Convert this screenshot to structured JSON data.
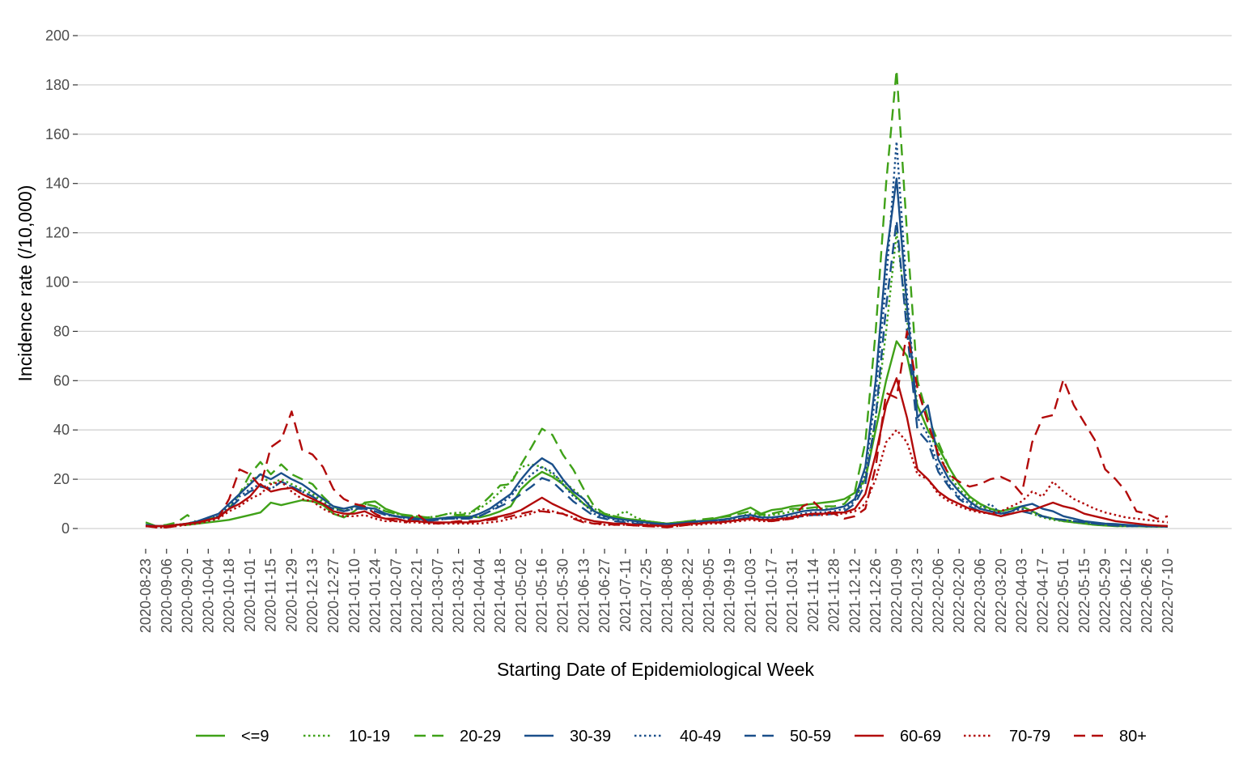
{
  "chart_data": {
    "type": "line",
    "xlabel": "Starting Date of Epidemiological Week",
    "ylabel": "Incidence rate (/10,000)",
    "ylim": [
      0,
      200
    ],
    "yticks": [
      0,
      20,
      40,
      60,
      80,
      100,
      120,
      140,
      160,
      180,
      200
    ],
    "grid": "horizontal",
    "legend_position": "bottom",
    "x_tick_labels": [
      "2020-08-23",
      "2020-09-06",
      "2020-09-20",
      "2020-10-04",
      "2020-10-18",
      "2020-11-01",
      "2020-11-15",
      "2020-11-29",
      "2020-12-13",
      "2020-12-27",
      "2021-01-10",
      "2021-01-24",
      "2021-02-07",
      "2021-02-21",
      "2021-03-07",
      "2021-03-21",
      "2021-04-04",
      "2021-04-18",
      "2021-05-02",
      "2021-05-16",
      "2021-05-30",
      "2021-06-13",
      "2021-06-27",
      "2021-07-11",
      "2021-07-25",
      "2021-08-08",
      "2021-08-22",
      "2021-09-05",
      "2021-09-19",
      "2021-10-03",
      "2021-10-17",
      "2021-10-31",
      "2021-11-14",
      "2021-11-28",
      "2021-12-12",
      "2021-12-26",
      "2022-01-09",
      "2022-01-23",
      "2022-02-06",
      "2022-02-20",
      "2022-03-06",
      "2022-03-20",
      "2022-04-03",
      "2022-04-17",
      "2022-05-01",
      "2022-05-15",
      "2022-05-29",
      "2022-06-12",
      "2022-06-26",
      "2022-07-10"
    ],
    "weeks": [
      "2020-08-23",
      "2020-08-30",
      "2020-09-06",
      "2020-09-13",
      "2020-09-20",
      "2020-09-27",
      "2020-10-04",
      "2020-10-11",
      "2020-10-18",
      "2020-10-25",
      "2020-11-01",
      "2020-11-08",
      "2020-11-15",
      "2020-11-22",
      "2020-11-29",
      "2020-12-06",
      "2020-12-13",
      "2020-12-20",
      "2020-12-27",
      "2021-01-03",
      "2021-01-10",
      "2021-01-17",
      "2021-01-24",
      "2021-01-31",
      "2021-02-07",
      "2021-02-14",
      "2021-02-21",
      "2021-02-28",
      "2021-03-07",
      "2021-03-14",
      "2021-03-21",
      "2021-03-28",
      "2021-04-04",
      "2021-04-11",
      "2021-04-18",
      "2021-04-25",
      "2021-05-02",
      "2021-05-09",
      "2021-05-16",
      "2021-05-23",
      "2021-05-30",
      "2021-06-06",
      "2021-06-13",
      "2021-06-20",
      "2021-06-27",
      "2021-07-04",
      "2021-07-11",
      "2021-07-18",
      "2021-07-25",
      "2021-08-01",
      "2021-08-08",
      "2021-08-15",
      "2021-08-22",
      "2021-08-29",
      "2021-09-05",
      "2021-09-12",
      "2021-09-19",
      "2021-09-26",
      "2021-10-03",
      "2021-10-10",
      "2021-10-17",
      "2021-10-24",
      "2021-10-31",
      "2021-11-07",
      "2021-11-14",
      "2021-11-21",
      "2021-11-28",
      "2021-12-05",
      "2021-12-12",
      "2021-12-19",
      "2021-12-26",
      "2022-01-02",
      "2022-01-09",
      "2022-01-16",
      "2022-01-23",
      "2022-01-30",
      "2022-02-06",
      "2022-02-13",
      "2022-02-20",
      "2022-02-27",
      "2022-03-06",
      "2022-03-13",
      "2022-03-20",
      "2022-03-27",
      "2022-04-03",
      "2022-04-10",
      "2022-04-17",
      "2022-04-24",
      "2022-05-01",
      "2022-05-08",
      "2022-05-15",
      "2022-05-22",
      "2022-05-29",
      "2022-06-05",
      "2022-06-12",
      "2022-06-19",
      "2022-06-26",
      "2022-07-03",
      "2022-07-10"
    ],
    "series": [
      {
        "name": "<=9",
        "color": "#3fa118",
        "dash": "solid",
        "values": [
          2.5,
          1.0,
          1.0,
          1.5,
          1.5,
          2.0,
          2.5,
          3.0,
          3.5,
          4.5,
          5.5,
          6.5,
          10.5,
          9.5,
          10.5,
          11.5,
          11.0,
          9.5,
          6.0,
          4.5,
          7.0,
          10.5,
          11.0,
          8.0,
          6.5,
          5.0,
          4.5,
          4.0,
          4.0,
          4.5,
          5.0,
          5.0,
          4.5,
          5.5,
          7.0,
          9.0,
          16.0,
          20.0,
          23.0,
          21.0,
          18.0,
          14.0,
          10.0,
          7.0,
          5.5,
          4.5,
          4.0,
          3.5,
          3.0,
          2.5,
          2.0,
          2.5,
          3.0,
          3.0,
          3.5,
          4.5,
          5.5,
          7.0,
          8.5,
          6.0,
          7.5,
          8.0,
          9.0,
          9.5,
          10.0,
          10.5,
          11.0,
          12.0,
          14.5,
          20.0,
          40.0,
          60.0,
          76.0,
          70.0,
          50.0,
          40.0,
          33.0,
          25.0,
          18.0,
          13.0,
          10.0,
          8.0,
          7.0,
          8.0,
          9.0,
          7.0,
          5.0,
          4.0,
          3.0,
          2.5,
          2.0,
          1.5,
          1.2,
          1.0,
          1.0,
          1.0,
          0.8,
          0.8,
          0.8
        ]
      },
      {
        "name": "10-19",
        "color": "#3fa118",
        "dash": "dot",
        "values": [
          1.0,
          1.0,
          1.0,
          1.5,
          2.0,
          2.5,
          3.5,
          5.0,
          9.0,
          14.0,
          19.0,
          22.0,
          18.0,
          20.0,
          18.0,
          16.0,
          14.0,
          11.0,
          8.0,
          7.0,
          9.0,
          10.0,
          9.0,
          7.0,
          6.0,
          5.0,
          5.0,
          4.5,
          5.0,
          6.0,
          6.5,
          6.0,
          8.0,
          11.0,
          15.0,
          19.0,
          25.0,
          26.0,
          25.0,
          22.0,
          19.0,
          16.0,
          12.0,
          8.0,
          6.0,
          5.0,
          7.0,
          4.5,
          3.0,
          2.5,
          2.0,
          2.0,
          2.0,
          2.5,
          3.0,
          3.5,
          4.0,
          5.0,
          6.0,
          5.0,
          5.5,
          6.0,
          7.0,
          8.0,
          8.5,
          8.0,
          8.0,
          9.0,
          12.0,
          20.0,
          45.0,
          80.0,
          120.0,
          85.0,
          50.0,
          40.0,
          31.0,
          22.0,
          16.0,
          12.0,
          9.0,
          7.5,
          6.0,
          7.0,
          8.0,
          6.0,
          4.5,
          3.5,
          3.0,
          2.5,
          2.0,
          1.5,
          1.3,
          1.0,
          1.0,
          1.0,
          0.8,
          0.8,
          0.8
        ]
      },
      {
        "name": "20-29",
        "color": "#3fa118",
        "dash": "dash",
        "values": [
          1.5,
          1.0,
          1.5,
          2.5,
          5.5,
          2.0,
          4.0,
          4.5,
          8.0,
          14.0,
          22.0,
          27.0,
          22.0,
          26.0,
          22.0,
          20.0,
          18.0,
          13.0,
          9.0,
          7.0,
          9.0,
          10.0,
          9.0,
          7.0,
          6.0,
          5.5,
          5.0,
          4.5,
          5.0,
          6.0,
          5.5,
          6.0,
          9.0,
          13.0,
          17.5,
          18.0,
          26.0,
          33.0,
          40.5,
          38.0,
          30.0,
          24.0,
          16.0,
          9.0,
          6.0,
          5.0,
          4.0,
          3.5,
          3.0,
          2.5,
          2.0,
          2.5,
          3.0,
          3.5,
          4.0,
          4.5,
          5.0,
          6.0,
          7.0,
          5.5,
          6.0,
          7.0,
          8.0,
          8.0,
          8.5,
          9.0,
          9.0,
          10.0,
          15.0,
          35.0,
          80.0,
          140.0,
          186.0,
          120.0,
          60.0,
          45.0,
          35.0,
          25.0,
          18.0,
          13.0,
          10.0,
          8.0,
          7.0,
          8.0,
          9.0,
          7.0,
          5.0,
          4.0,
          3.5,
          3.0,
          2.5,
          2.0,
          1.5,
          1.2,
          1.0,
          1.0,
          1.0,
          0.8,
          0.8
        ]
      },
      {
        "name": "30-39",
        "color": "#1a4f8a",
        "dash": "solid",
        "values": [
          1.5,
          1.0,
          1.0,
          1.5,
          2.0,
          3.0,
          4.5,
          6.0,
          10.0,
          14.0,
          18.0,
          22.0,
          20.0,
          22.5,
          20.0,
          18.0,
          15.0,
          12.0,
          9.0,
          8.0,
          9.0,
          8.5,
          8.0,
          6.0,
          5.0,
          4.5,
          4.0,
          3.5,
          4.0,
          4.5,
          4.5,
          4.5,
          6.0,
          8.0,
          11.0,
          14.0,
          20.0,
          25.0,
          28.5,
          26.0,
          20.0,
          15.0,
          12.0,
          7.0,
          5.0,
          4.0,
          3.5,
          3.0,
          2.5,
          2.0,
          1.8,
          2.0,
          2.5,
          3.0,
          3.0,
          3.5,
          4.0,
          5.0,
          5.5,
          4.5,
          4.5,
          5.0,
          6.0,
          7.0,
          7.5,
          7.5,
          8.0,
          9.0,
          12.0,
          25.0,
          60.0,
          110.0,
          142.0,
          90.0,
          45.0,
          50.0,
          28.0,
          20.0,
          15.0,
          11.0,
          8.0,
          7.0,
          6.0,
          7.0,
          9.0,
          10.0,
          8.0,
          7.0,
          5.0,
          4.0,
          3.0,
          2.5,
          2.0,
          1.8,
          1.5,
          1.2,
          1.0,
          1.0,
          1.0
        ]
      },
      {
        "name": "40-49",
        "color": "#1a4f8a",
        "dash": "dot",
        "values": [
          1.0,
          1.0,
          1.0,
          1.5,
          2.0,
          3.0,
          4.0,
          5.0,
          9.0,
          13.0,
          16.0,
          18.0,
          16.0,
          19.0,
          17.0,
          15.0,
          13.0,
          10.0,
          8.0,
          7.0,
          8.0,
          8.0,
          7.0,
          5.5,
          5.0,
          4.0,
          3.5,
          3.0,
          3.5,
          4.0,
          4.0,
          4.0,
          5.0,
          7.0,
          10.0,
          13.0,
          18.0,
          22.0,
          25.0,
          23.0,
          18.0,
          13.0,
          10.0,
          6.0,
          4.5,
          3.5,
          3.0,
          2.5,
          2.0,
          2.0,
          1.8,
          2.0,
          2.5,
          2.5,
          3.0,
          3.0,
          3.5,
          4.0,
          5.0,
          4.0,
          4.0,
          4.5,
          5.0,
          6.0,
          6.5,
          6.5,
          7.0,
          8.0,
          11.0,
          22.0,
          55.0,
          100.0,
          157.0,
          95.0,
          45.0,
          38.0,
          25.0,
          18.0,
          13.0,
          10.0,
          8.0,
          10.0,
          6.0,
          7.0,
          8.0,
          7.0,
          5.0,
          4.0,
          3.5,
          3.0,
          2.5,
          2.0,
          1.5,
          1.2,
          1.0,
          1.0,
          1.0,
          0.8,
          0.8
        ]
      },
      {
        "name": "50-59",
        "color": "#1a4f8a",
        "dash": "dash",
        "values": [
          1.0,
          1.0,
          1.0,
          1.5,
          2.0,
          3.0,
          4.0,
          5.0,
          8.0,
          12.0,
          15.0,
          17.0,
          16.0,
          19.0,
          17.0,
          15.0,
          13.0,
          10.0,
          8.0,
          7.0,
          8.0,
          8.0,
          7.0,
          5.5,
          5.0,
          4.0,
          3.5,
          3.0,
          3.5,
          4.0,
          4.0,
          4.0,
          5.0,
          7.0,
          9.0,
          11.0,
          14.0,
          17.0,
          20.5,
          19.0,
          15.0,
          11.0,
          8.0,
          5.0,
          4.0,
          3.0,
          2.5,
          2.0,
          2.0,
          1.8,
          1.5,
          2.0,
          2.0,
          2.5,
          2.5,
          3.0,
          3.0,
          4.0,
          4.5,
          3.5,
          3.5,
          4.0,
          4.5,
          5.0,
          5.5,
          5.5,
          6.0,
          7.0,
          10.0,
          18.0,
          45.0,
          90.0,
          125.0,
          80.0,
          40.0,
          35.0,
          23.0,
          17.0,
          12.0,
          9.0,
          7.0,
          6.0,
          5.5,
          6.0,
          7.0,
          6.0,
          5.0,
          4.0,
          3.5,
          3.0,
          2.5,
          2.0,
          1.5,
          1.2,
          1.0,
          1.0,
          1.0,
          0.8,
          0.8
        ]
      },
      {
        "name": "60-69",
        "color": "#b20a0a",
        "dash": "solid",
        "values": [
          1.0,
          1.0,
          1.0,
          1.5,
          2.0,
          2.5,
          3.5,
          4.5,
          8.0,
          10.0,
          13.0,
          18.0,
          15.0,
          16.0,
          16.5,
          14.0,
          12.0,
          10.0,
          7.0,
          6.0,
          6.0,
          7.0,
          5.0,
          4.0,
          4.0,
          3.0,
          3.0,
          2.5,
          2.5,
          2.5,
          2.5,
          2.5,
          3.0,
          4.0,
          5.0,
          6.0,
          7.5,
          10.0,
          12.5,
          10.0,
          8.0,
          6.0,
          4.0,
          3.0,
          2.5,
          2.0,
          2.0,
          1.5,
          1.5,
          1.2,
          1.0,
          1.5,
          2.0,
          2.0,
          2.5,
          2.5,
          3.0,
          3.5,
          4.0,
          3.5,
          3.5,
          4.0,
          4.5,
          5.5,
          6.0,
          6.0,
          6.5,
          6.5,
          8.0,
          14.0,
          30.0,
          50.0,
          61.0,
          45.0,
          24.0,
          20.0,
          15.0,
          12.0,
          10.0,
          8.0,
          7.0,
          6.0,
          5.0,
          6.0,
          7.0,
          7.5,
          9.0,
          10.5,
          9.0,
          8.0,
          6.0,
          5.0,
          4.0,
          3.0,
          2.5,
          2.0,
          1.5,
          1.2,
          1.0
        ]
      },
      {
        "name": "70-79",
        "color": "#b20a0a",
        "dash": "dot",
        "values": [
          1.0,
          0.5,
          0.5,
          1.0,
          1.5,
          2.0,
          3.0,
          4.0,
          7.0,
          9.0,
          12.0,
          14.0,
          18.0,
          19.0,
          15.0,
          12.0,
          11.0,
          8.0,
          6.0,
          5.0,
          5.0,
          5.5,
          4.0,
          3.0,
          3.0,
          2.5,
          2.5,
          2.0,
          2.0,
          2.0,
          2.0,
          2.0,
          2.0,
          2.5,
          3.0,
          4.0,
          5.0,
          6.0,
          8.0,
          7.0,
          6.0,
          4.5,
          3.0,
          2.0,
          1.5,
          1.5,
          1.5,
          1.2,
          1.0,
          1.0,
          0.8,
          1.0,
          1.5,
          1.5,
          2.0,
          2.0,
          2.5,
          3.0,
          3.5,
          3.0,
          3.0,
          3.5,
          4.0,
          5.0,
          5.5,
          5.5,
          6.0,
          6.0,
          7.0,
          10.0,
          20.0,
          35.0,
          40.0,
          35.0,
          22.0,
          20.0,
          14.0,
          11.0,
          9.0,
          7.5,
          6.5,
          6.0,
          7.0,
          9.0,
          11.0,
          15.0,
          13.0,
          19.0,
          15.0,
          12.0,
          10.0,
          8.0,
          6.5,
          5.5,
          4.5,
          4.0,
          3.5,
          3.0,
          2.5
        ]
      },
      {
        "name": "80+",
        "color": "#b20a0a",
        "dash": "dash",
        "values": [
          1.0,
          0.5,
          0.5,
          1.0,
          2.0,
          2.5,
          3.5,
          4.5,
          12.0,
          24.0,
          22.0,
          17.0,
          33.0,
          36.0,
          47.5,
          32.0,
          30.0,
          25.0,
          16.0,
          12.0,
          10.0,
          9.0,
          6.0,
          4.0,
          3.0,
          2.5,
          6.0,
          2.5,
          2.0,
          2.5,
          3.0,
          3.0,
          3.0,
          3.5,
          4.0,
          5.0,
          6.0,
          7.0,
          7.0,
          6.5,
          6.0,
          4.0,
          2.5,
          2.0,
          2.0,
          1.5,
          1.5,
          1.2,
          1.0,
          0.8,
          0.5,
          1.0,
          1.5,
          2.0,
          2.5,
          2.5,
          3.0,
          3.5,
          4.5,
          3.5,
          3.0,
          3.5,
          4.0,
          9.0,
          11.0,
          7.0,
          6.0,
          4.0,
          5.0,
          8.0,
          25.0,
          55.0,
          53.0,
          80.0,
          57.0,
          43.0,
          30.0,
          22.0,
          19.0,
          17.0,
          18.0,
          20.0,
          21.0,
          19.0,
          14.0,
          35.0,
          45.0,
          46.0,
          60.5,
          50.0,
          43.0,
          36.0,
          24.0,
          20.0,
          15.0,
          7.0,
          6.0,
          4.0,
          5.0
        ]
      }
    ]
  }
}
